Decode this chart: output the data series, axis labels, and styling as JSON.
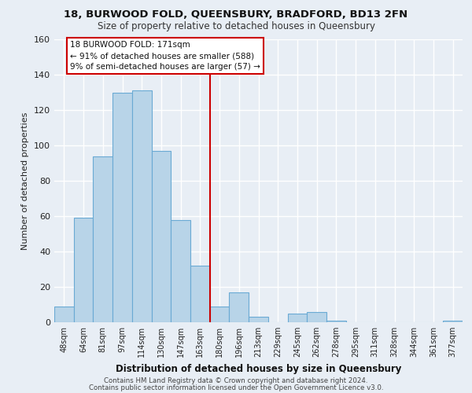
{
  "title1": "18, BURWOOD FOLD, QUEENSBURY, BRADFORD, BD13 2FN",
  "title2": "Size of property relative to detached houses in Queensbury",
  "xlabel": "Distribution of detached houses by size in Queensbury",
  "ylabel": "Number of detached properties",
  "bar_labels": [
    "48sqm",
    "64sqm",
    "81sqm",
    "97sqm",
    "114sqm",
    "130sqm",
    "147sqm",
    "163sqm",
    "180sqm",
    "196sqm",
    "213sqm",
    "229sqm",
    "245sqm",
    "262sqm",
    "278sqm",
    "295sqm",
    "311sqm",
    "328sqm",
    "344sqm",
    "361sqm",
    "377sqm"
  ],
  "bar_values": [
    9,
    59,
    94,
    130,
    131,
    97,
    58,
    32,
    9,
    17,
    3,
    0,
    5,
    6,
    1,
    0,
    0,
    0,
    0,
    0,
    1
  ],
  "bar_color": "#b8d4e8",
  "bar_edge_color": "#6aaad4",
  "vline_color": "#cc0000",
  "ylim": [
    0,
    160
  ],
  "yticks": [
    0,
    20,
    40,
    60,
    80,
    100,
    120,
    140,
    160
  ],
  "annotation_title": "18 BURWOOD FOLD: 171sqm",
  "annotation_line1": "← 91% of detached houses are smaller (588)",
  "annotation_line2": "9% of semi-detached houses are larger (57) →",
  "annotation_box_color": "#ffffff",
  "annotation_box_edge": "#cc0000",
  "footer1": "Contains HM Land Registry data © Crown copyright and database right 2024.",
  "footer2": "Contains public sector information licensed under the Open Government Licence v3.0.",
  "background_color": "#e8eef5",
  "grid_color": "#ffffff"
}
